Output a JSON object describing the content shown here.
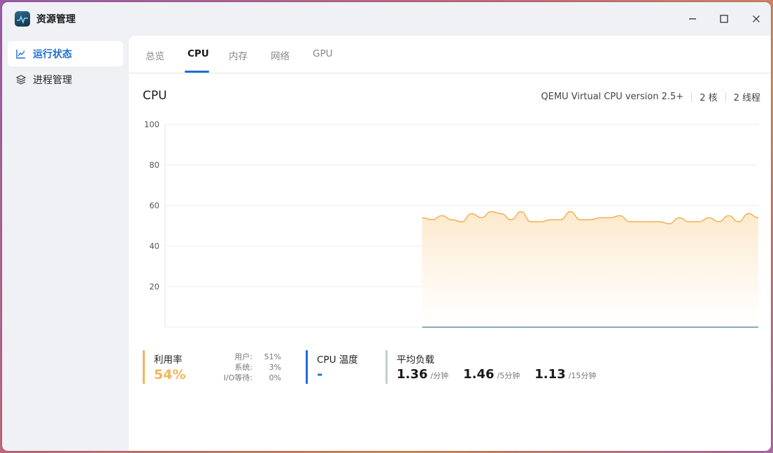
{
  "window": {
    "title": "资源管理"
  },
  "sidebar": {
    "items": [
      {
        "label": "运行状态",
        "icon": "line-chart-icon",
        "active": true
      },
      {
        "label": "进程管理",
        "icon": "layers-icon",
        "active": false
      }
    ]
  },
  "tabs": [
    {
      "label": "总览",
      "active": false
    },
    {
      "label": "CPU",
      "active": true
    },
    {
      "label": "内存",
      "active": false
    },
    {
      "label": "网络",
      "active": false
    },
    {
      "label": "GPU",
      "active": false
    }
  ],
  "cpu": {
    "title": "CPU",
    "model": "QEMU Virtual CPU version 2.5+",
    "cores": "2 核",
    "threads": "2 线程"
  },
  "chart_data": {
    "type": "area",
    "ylim": [
      0,
      100
    ],
    "yticks": [
      "100",
      "80",
      "60",
      "40",
      "20"
    ],
    "grid": true,
    "series_color": "#f2b45a",
    "x_range": [
      0,
      60
    ],
    "x": [
      26,
      27,
      28,
      29,
      30,
      31,
      32,
      33,
      34,
      35,
      36,
      37,
      38,
      39,
      40,
      41,
      42,
      43,
      44,
      45,
      46,
      47,
      48,
      49,
      50,
      51,
      52,
      53,
      54,
      55,
      56,
      57,
      58,
      59,
      60
    ],
    "values": [
      54,
      53,
      55,
      53,
      52,
      56,
      54,
      57,
      56,
      53,
      57,
      52,
      52,
      53,
      53,
      57,
      53,
      53,
      54,
      54,
      55,
      52,
      52,
      52,
      52,
      51,
      54,
      52,
      52,
      54,
      52,
      55,
      52,
      56,
      54
    ]
  },
  "stats": {
    "utilization": {
      "label": "利用率",
      "value": "54%",
      "user_label": "用户:",
      "user_value": "51%",
      "system_label": "系统:",
      "system_value": "3%",
      "io_label": "I/O等待:",
      "io_value": "0%"
    },
    "temperature": {
      "label": "CPU 温度",
      "value": "-"
    },
    "load": {
      "label": "平均负载",
      "items": [
        {
          "value": "1.36",
          "unit": "/分钟"
        },
        {
          "value": "1.46",
          "unit": "/5分钟"
        },
        {
          "value": "1.13",
          "unit": "/15分钟"
        }
      ]
    }
  },
  "colors": {
    "accent": "#1f6fd1",
    "utilization": "#f2b45a",
    "temperature": "#1f6fd1",
    "load": "#c8ccd2"
  }
}
